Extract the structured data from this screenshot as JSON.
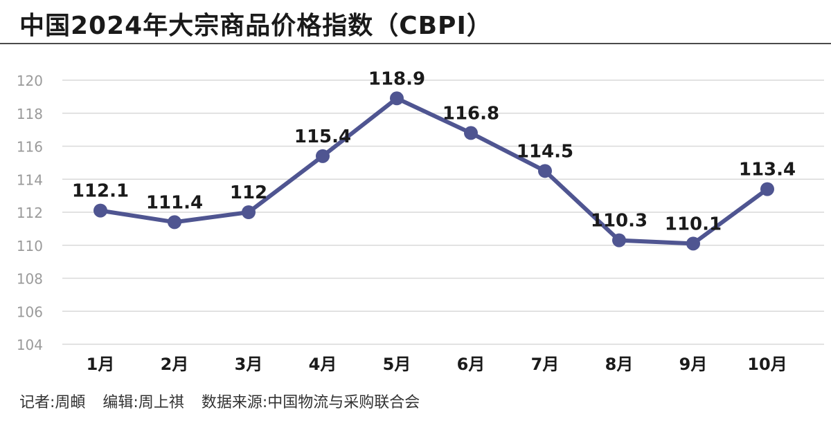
{
  "title": "中国2024年大宗商品价格指数（CBPI）",
  "footer": {
    "reporter": "记者:周頔",
    "editor": "编辑:周上祺",
    "source": "数据来源:中国物流与采购联合会"
  },
  "colors": {
    "line": "#4f5591",
    "grid": "#d9d9d9",
    "ytick": "#9a9a9a",
    "text": "#1a1a1a"
  },
  "chart_data": {
    "type": "line",
    "title": "中国2024年大宗商品价格指数（CBPI）",
    "xlabel": "",
    "ylabel": "",
    "categories": [
      "1月",
      "2月",
      "3月",
      "4月",
      "5月",
      "6月",
      "7月",
      "8月",
      "9月",
      "10月"
    ],
    "series": [
      {
        "values": [
          112.1,
          111.4,
          112,
          115.4,
          118.9,
          116.8,
          114.5,
          110.3,
          110.1,
          113.4
        ]
      }
    ],
    "value_labels": [
      "112.1",
      "111.4",
      "112",
      "115.4",
      "118.9",
      "116.8",
      "114.5",
      "110.3",
      "110.1",
      "113.4"
    ],
    "ylim": [
      104,
      120
    ],
    "yticks": [
      104,
      106,
      108,
      110,
      112,
      114,
      116,
      118,
      120
    ],
    "grid": true,
    "legend": "none"
  }
}
